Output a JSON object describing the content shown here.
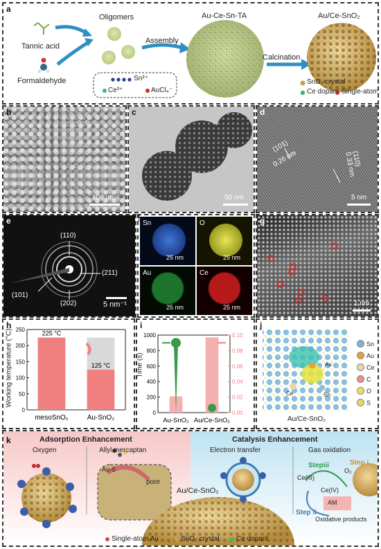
{
  "panel_a": {
    "label": "a",
    "oligomers": "Oligomers",
    "tannic_acid": "Tannic acid",
    "formaldehyde": "Formaldehyde",
    "assembly": "Assembly",
    "au_ce_sn_ta": "Au-Ce-Sn-TA",
    "calcination": "Calcination",
    "product": "Au/Ce-SnO₂",
    "ion_sn": "Sn²⁺",
    "ion_ce": "Ce³⁺",
    "ion_au": "AuCl₄⁻",
    "legend_sno2": "SnO₂ crystal",
    "legend_ce": "Ce dopant",
    "legend_au": "Single-atom Au"
  },
  "panel_b": {
    "label": "b",
    "scale": "100 nm"
  },
  "panel_c": {
    "label": "c",
    "scale": "50 nm"
  },
  "panel_d": {
    "label": "d",
    "plane1": "(101)",
    "d1": "0.26 nm",
    "plane2": "(110)",
    "d2": "0.33 nm",
    "scale": "5 nm"
  },
  "panel_e": {
    "label": "e",
    "ring_110": "(110)",
    "ring_211": "(211)",
    "ring_101": "(101)",
    "ring_202": "(202)",
    "scale": "5 nm⁻¹"
  },
  "panel_f": {
    "label": "f",
    "sn": "Sn",
    "o": "O",
    "au": "Au",
    "ce": "Ce",
    "scale": "25 nm"
  },
  "panel_g": {
    "label": "g",
    "scale": "1 nm"
  },
  "panel_h": {
    "label": "h",
    "ylabel": "Working temperature (°C)"
  },
  "panel_i": {
    "label": "i",
    "ylabel": "Time (s)"
  },
  "panel_j": {
    "label": "j",
    "caption": "Au/Ce-SnO₂",
    "legend": [
      {
        "name": "Sn",
        "color": "#7fb2d6"
      },
      {
        "name": "Au",
        "color": "#e4a23c"
      },
      {
        "name": "Ce",
        "color": "#e6d7a8"
      },
      {
        "name": "C",
        "color": "#f28b8b"
      },
      {
        "name": "O",
        "color": "#e4e45a"
      },
      {
        "name": "S",
        "color": "#ecd36a"
      }
    ],
    "atom_au": "Au",
    "atom_ce": "Ce",
    "atom_sn": "Sn"
  },
  "panel_k": {
    "label": "k",
    "adsorption_title": "Adsorption Enhancement",
    "catalysis_title": "Catalysis Enhancement",
    "oxygen": "Oxygen",
    "allyl": "Allyl mercaptan",
    "au_s": "Au-S",
    "pore": "pore",
    "product": "Au/Ce-SnO₂",
    "electron_transfer": "Electron transfer",
    "gas_oxidation": "Gas oxidation",
    "step_i": "Step i",
    "step_ii": "Step ii",
    "step_iii": "Stepiii",
    "ce3": "Ce(III)",
    "ce4": "Ce(IV)",
    "o2": "O₂",
    "am": "AM",
    "oxidative": "Oxidative products",
    "legend_au": "Single-atom Au",
    "legend_sno2": "SnO₂ crystal",
    "legend_ce": "Ce dopant"
  },
  "chart_data": [
    {
      "type": "bar",
      "panel": "h",
      "categories": [
        "mesoSnO₂",
        "Au-SnO₂"
      ],
      "values": [
        225,
        125
      ],
      "value_labels": [
        "225 °C",
        "125 °C"
      ],
      "ylabel": "Working temperature (°C)",
      "ylim": [
        0,
        250
      ],
      "yticks": [
        0,
        50,
        100,
        150,
        200,
        250
      ],
      "grid": false
    },
    {
      "type": "bar",
      "panel": "i",
      "categories": [
        "Au-SnO₂",
        "Au/Ce-SnO₂"
      ],
      "values": [
        210,
        970
      ],
      "ylabel": "Time (s)",
      "ylim": [
        0,
        1000
      ],
      "yticks": [
        0,
        200,
        400,
        600,
        800,
        1000
      ],
      "y2lim": [
        0,
        0.1
      ],
      "y2ticks": [
        0.0,
        0.02,
        0.04,
        0.06,
        0.08,
        0.1
      ],
      "grid": false
    }
  ]
}
